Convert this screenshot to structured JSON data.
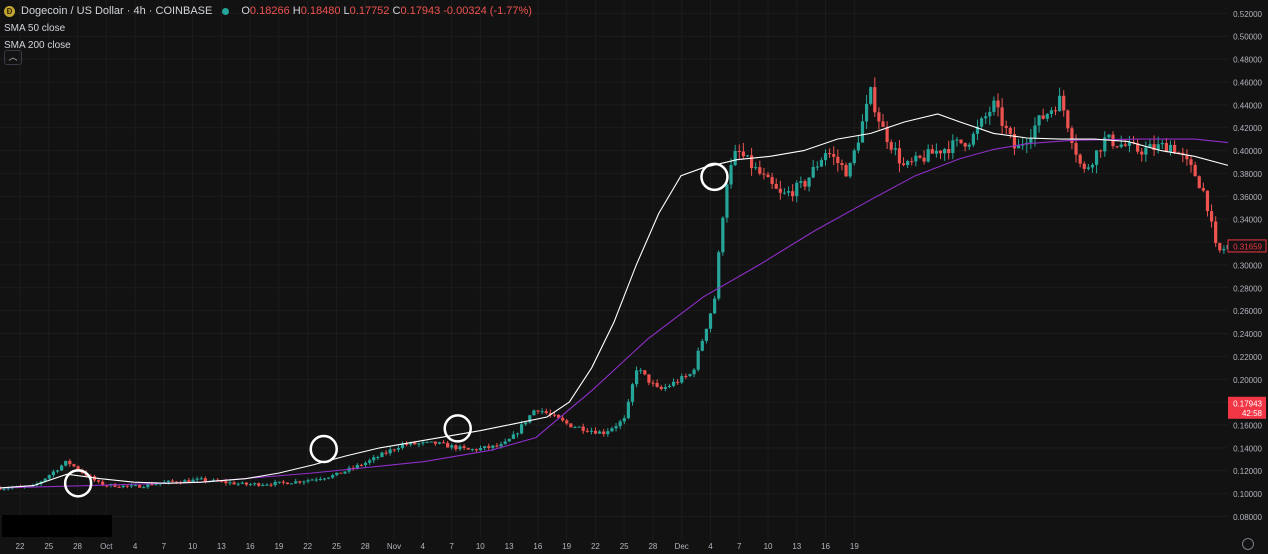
{
  "legend": {
    "symbol_title": "Dogecoin / US Dollar · 4h · COINBASE",
    "o_label": "O",
    "o_value": "0.18266",
    "h_label": "H",
    "h_value": "0.18480",
    "l_label": "L",
    "l_value": "0.17752",
    "c_label": "C",
    "c_value": "0.17943",
    "change": "-0.00324 (-1.77%)",
    "indicator1": "SMA 50 close",
    "indicator2": "SMA 200 close",
    "collapse_icon": "chevron-up-icon"
  },
  "chart_data": {
    "type": "candlestick",
    "ylim": [
      0.07,
      0.525
    ],
    "y_ticks": [
      "0.08000",
      "0.10000",
      "0.12000",
      "0.14000",
      "0.16000",
      "0.18000",
      "0.20000",
      "0.22000",
      "0.24000",
      "0.26000",
      "0.28000",
      "0.30000",
      "0.32000",
      "0.34000",
      "0.36000",
      "0.38000",
      "0.40000",
      "0.42000",
      "0.44000",
      "0.46000",
      "0.48000",
      "0.50000",
      "0.52000"
    ],
    "x_ticks": [
      "22",
      "25",
      "28",
      "Oct",
      "4",
      "7",
      "10",
      "13",
      "16",
      "19",
      "22",
      "25",
      "28",
      "Nov",
      "4",
      "7",
      "10",
      "13",
      "16",
      "19",
      "22",
      "25",
      "28",
      "Dec",
      "4",
      "7",
      "10",
      "13",
      "16",
      "19"
    ],
    "price_path": [
      [
        22,
        0.105
      ],
      [
        25,
        0.106
      ],
      [
        28,
        0.128
      ],
      [
        31,
        0.108
      ],
      [
        34,
        0.106
      ],
      [
        37,
        0.11
      ],
      [
        40,
        0.112
      ],
      [
        44,
        0.108
      ],
      [
        47,
        0.109
      ],
      [
        49,
        0.111
      ],
      [
        52,
        0.116
      ],
      [
        55,
        0.128
      ],
      [
        58,
        0.143
      ],
      [
        61,
        0.144
      ],
      [
        64,
        0.138
      ],
      [
        67,
        0.142
      ],
      [
        68,
        0.15
      ],
      [
        70,
        0.175
      ],
      [
        73,
        0.16
      ],
      [
        76,
        0.153
      ],
      [
        78,
        0.165
      ],
      [
        79,
        0.21
      ],
      [
        81,
        0.19
      ],
      [
        84,
        0.205
      ],
      [
        86,
        0.27
      ],
      [
        87,
        0.37
      ],
      [
        88,
        0.4
      ],
      [
        90,
        0.38
      ],
      [
        92,
        0.36
      ],
      [
        94,
        0.37
      ],
      [
        96,
        0.4
      ],
      [
        98,
        0.38
      ],
      [
        100,
        0.45
      ],
      [
        101,
        0.42
      ],
      [
        103,
        0.385
      ],
      [
        106,
        0.4
      ],
      [
        109,
        0.41
      ],
      [
        111,
        0.44
      ],
      [
        113,
        0.4
      ],
      [
        115,
        0.425
      ],
      [
        117,
        0.445
      ],
      [
        119,
        0.38
      ],
      [
        121,
        0.41
      ],
      [
        124,
        0.4
      ],
      [
        127,
        0.405
      ],
      [
        129,
        0.38
      ],
      [
        130,
        0.36
      ],
      [
        131,
        0.31
      ],
      [
        132,
        0.3166
      ]
    ],
    "sma50_path": [
      [
        22,
        0.105
      ],
      [
        25,
        0.107
      ],
      [
        28,
        0.117
      ],
      [
        31,
        0.113
      ],
      [
        34,
        0.11
      ],
      [
        37,
        0.109
      ],
      [
        40,
        0.11
      ],
      [
        44,
        0.113
      ],
      [
        47,
        0.118
      ],
      [
        50,
        0.125
      ],
      [
        53,
        0.133
      ],
      [
        56,
        0.14
      ],
      [
        59,
        0.145
      ],
      [
        62,
        0.15
      ],
      [
        65,
        0.155
      ],
      [
        68,
        0.161
      ],
      [
        71,
        0.167
      ],
      [
        73,
        0.18
      ],
      [
        75,
        0.21
      ],
      [
        77,
        0.25
      ],
      [
        79,
        0.3
      ],
      [
        81,
        0.345
      ],
      [
        83,
        0.378
      ],
      [
        85,
        0.385
      ],
      [
        88,
        0.392
      ],
      [
        91,
        0.395
      ],
      [
        94,
        0.4
      ],
      [
        97,
        0.41
      ],
      [
        100,
        0.415
      ],
      [
        103,
        0.425
      ],
      [
        106,
        0.432
      ],
      [
        108,
        0.425
      ],
      [
        111,
        0.415
      ],
      [
        114,
        0.411
      ],
      [
        117,
        0.41
      ],
      [
        120,
        0.41
      ],
      [
        123,
        0.408
      ],
      [
        126,
        0.4
      ],
      [
        129,
        0.395
      ],
      [
        132,
        0.387
      ]
    ],
    "sma200_path": [
      [
        22,
        0.105
      ],
      [
        30,
        0.107
      ],
      [
        40,
        0.11
      ],
      [
        50,
        0.118
      ],
      [
        60,
        0.128
      ],
      [
        66,
        0.138
      ],
      [
        70,
        0.149
      ],
      [
        75,
        0.19
      ],
      [
        80,
        0.235
      ],
      [
        85,
        0.272
      ],
      [
        90,
        0.3
      ],
      [
        95,
        0.33
      ],
      [
        100,
        0.357
      ],
      [
        104,
        0.378
      ],
      [
        108,
        0.393
      ],
      [
        111,
        0.401
      ],
      [
        114,
        0.406
      ],
      [
        118,
        0.409
      ],
      [
        124,
        0.41
      ],
      [
        129,
        0.41
      ],
      [
        132,
        0.407
      ]
    ],
    "highlight_marks": [
      {
        "x": 29,
        "y": 0.109
      },
      {
        "x": 51,
        "y": 0.139
      },
      {
        "x": 63,
        "y": 0.157
      },
      {
        "x": 86,
        "y": 0.377
      }
    ],
    "last_price": {
      "value": "0.17943",
      "countdown": "42:58",
      "color": "#f23645"
    },
    "alt_price_label": {
      "value": "0.31659",
      "y": 0.31659
    },
    "colors": {
      "up": "#26a69a",
      "down": "#ef5350",
      "sma50": "#ffffff",
      "sma200": "#8e2ec7",
      "background": "#121212",
      "grid": "#1c1c1c",
      "axis_text": "#b2b5be"
    }
  },
  "footer": {
    "settings_icon": "settings-icon"
  }
}
